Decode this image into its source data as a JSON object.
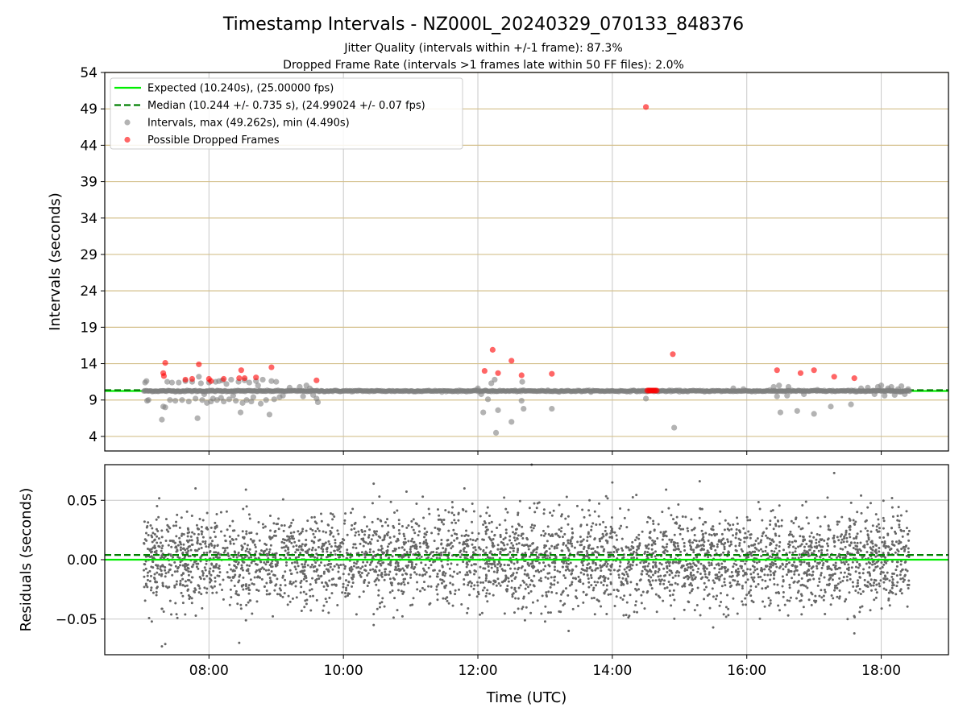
{
  "title": "Timestamp Intervals - NZ000L_20240329_070133_848376",
  "subtitle_1": "Jitter Quality (intervals within +/-1 frame): 87.3%",
  "subtitle_2": "Dropped Frame Rate (intervals >1 frames late within 50 FF files): 2.0%",
  "colors": {
    "expected": "#00ee00",
    "median": "#008000",
    "intervals": "#808080",
    "dropped": "#ff0000",
    "hgrid_top": "#d4c08c",
    "grid": "#c8c8c8"
  },
  "chart_data": [
    {
      "type": "scatter",
      "ylabel": "Intervals (seconds)",
      "xlabel": "",
      "x_unit": "hours UTC",
      "xlim": [
        6.45,
        19.0
      ],
      "ylim": [
        2.0,
        54.0
      ],
      "yticks": [
        4,
        9,
        14,
        19,
        24,
        29,
        34,
        39,
        44,
        49,
        54
      ],
      "xticks": [
        8,
        10,
        12,
        14,
        16,
        18
      ],
      "grid": true,
      "legend_position": "upper-left",
      "legend": [
        {
          "label": "Expected (10.240s), (25.00000 fps)",
          "style": "solid-line",
          "color": "#00ee00"
        },
        {
          "label": "Median (10.244 +/- 0.735 s), (24.99024 +/- 0.07 fps)",
          "style": "dashed-line",
          "color": "#008000"
        },
        {
          "label": "Intervals, max (49.262s), min (4.490s)",
          "style": "dot",
          "color": "#808080"
        },
        {
          "label": "Possible Dropped Frames",
          "style": "dot",
          "color": "#ff0000"
        }
      ],
      "expected_y": 10.24,
      "median_y": 10.244,
      "baseline_x_range": [
        7.03,
        18.42
      ],
      "interval_points": [
        [
          7.05,
          11.4
        ],
        [
          7.07,
          11.6
        ],
        [
          7.08,
          8.9
        ],
        [
          7.1,
          9.0
        ],
        [
          7.3,
          6.3
        ],
        [
          7.32,
          8.1
        ],
        [
          7.35,
          8.0
        ],
        [
          7.38,
          11.5
        ],
        [
          7.42,
          9.0
        ],
        [
          7.45,
          11.4
        ],
        [
          7.5,
          8.9
        ],
        [
          7.55,
          11.4
        ],
        [
          7.6,
          9.0
        ],
        [
          7.65,
          11.6
        ],
        [
          7.7,
          8.8
        ],
        [
          7.75,
          11.5
        ],
        [
          7.8,
          9.2
        ],
        [
          7.83,
          6.5
        ],
        [
          7.85,
          12.2
        ],
        [
          7.88,
          11.3
        ],
        [
          7.9,
          9.0
        ],
        [
          7.93,
          9.8
        ],
        [
          7.97,
          8.6
        ],
        [
          8.0,
          11.4
        ],
        [
          8.03,
          8.8
        ],
        [
          8.06,
          9.2
        ],
        [
          8.1,
          11.5
        ],
        [
          8.12,
          9.0
        ],
        [
          8.15,
          11.6
        ],
        [
          8.18,
          9.3
        ],
        [
          8.2,
          11.7
        ],
        [
          8.22,
          8.8
        ],
        [
          8.26,
          11.2
        ],
        [
          8.3,
          9.1
        ],
        [
          8.33,
          11.8
        ],
        [
          8.36,
          9.6
        ],
        [
          8.4,
          8.9
        ],
        [
          8.44,
          11.5
        ],
        [
          8.47,
          7.3
        ],
        [
          8.5,
          8.6
        ],
        [
          8.53,
          11.7
        ],
        [
          8.56,
          9.0
        ],
        [
          8.6,
          11.4
        ],
        [
          8.63,
          8.8
        ],
        [
          8.66,
          9.4
        ],
        [
          8.7,
          11.6
        ],
        [
          8.73,
          11.0
        ],
        [
          8.77,
          8.5
        ],
        [
          8.8,
          11.8
        ],
        [
          8.85,
          9.0
        ],
        [
          8.9,
          7.0
        ],
        [
          8.93,
          11.6
        ],
        [
          8.97,
          9.1
        ],
        [
          9.0,
          11.5
        ],
        [
          9.05,
          9.4
        ],
        [
          9.1,
          9.6
        ],
        [
          9.2,
          10.7
        ],
        [
          9.35,
          10.8
        ],
        [
          9.4,
          9.5
        ],
        [
          9.45,
          11.0
        ],
        [
          9.5,
          10.6
        ],
        [
          9.55,
          9.7
        ],
        [
          9.6,
          9.2
        ],
        [
          9.62,
          8.7
        ],
        [
          12.0,
          10.6
        ],
        [
          12.05,
          9.8
        ],
        [
          12.08,
          7.3
        ],
        [
          12.15,
          9.1
        ],
        [
          12.2,
          11.3
        ],
        [
          12.25,
          11.8
        ],
        [
          12.27,
          4.5
        ],
        [
          12.3,
          7.6
        ],
        [
          12.5,
          6.0
        ],
        [
          12.65,
          8.9
        ],
        [
          12.68,
          7.8
        ],
        [
          12.66,
          11.5
        ],
        [
          13.1,
          7.8
        ],
        [
          14.5,
          9.2
        ],
        [
          14.92,
          5.2
        ],
        [
          15.8,
          10.6
        ],
        [
          15.95,
          10.5
        ],
        [
          16.4,
          10.8
        ],
        [
          16.45,
          9.5
        ],
        [
          16.48,
          11.0
        ],
        [
          16.5,
          7.3
        ],
        [
          16.6,
          9.6
        ],
        [
          16.62,
          10.8
        ],
        [
          16.75,
          7.5
        ],
        [
          16.85,
          9.8
        ],
        [
          17.0,
          7.1
        ],
        [
          17.05,
          10.4
        ],
        [
          17.25,
          8.1
        ],
        [
          17.55,
          8.4
        ],
        [
          17.7,
          10.6
        ],
        [
          17.8,
          10.7
        ],
        [
          17.9,
          9.8
        ],
        [
          17.95,
          10.8
        ],
        [
          18.0,
          11.0
        ],
        [
          18.05,
          9.6
        ],
        [
          18.1,
          10.6
        ],
        [
          18.15,
          10.8
        ],
        [
          18.2,
          9.7
        ],
        [
          18.25,
          10.5
        ],
        [
          18.3,
          10.9
        ],
        [
          18.35,
          9.8
        ],
        [
          18.4,
          10.5
        ]
      ],
      "dropped_points": [
        [
          7.32,
          12.7
        ],
        [
          7.33,
          12.3
        ],
        [
          7.35,
          14.1
        ],
        [
          7.65,
          11.8
        ],
        [
          7.75,
          11.9
        ],
        [
          7.85,
          13.9
        ],
        [
          8.0,
          11.9
        ],
        [
          8.03,
          11.6
        ],
        [
          8.22,
          11.9
        ],
        [
          8.45,
          12.0
        ],
        [
          8.48,
          13.1
        ],
        [
          8.53,
          12.0
        ],
        [
          8.7,
          12.1
        ],
        [
          8.93,
          13.5
        ],
        [
          9.6,
          11.7
        ],
        [
          12.1,
          13.0
        ],
        [
          12.22,
          15.9
        ],
        [
          12.3,
          12.7
        ],
        [
          12.5,
          14.4
        ],
        [
          12.65,
          12.4
        ],
        [
          13.1,
          12.6
        ],
        [
          14.5,
          49.262
        ],
        [
          14.52,
          10.3
        ],
        [
          14.54,
          10.3
        ],
        [
          14.56,
          10.3
        ],
        [
          14.58,
          10.3
        ],
        [
          14.6,
          10.3
        ],
        [
          14.62,
          10.3
        ],
        [
          14.64,
          10.3
        ],
        [
          14.66,
          10.3
        ],
        [
          14.9,
          15.3
        ],
        [
          16.45,
          13.1
        ],
        [
          16.8,
          12.7
        ],
        [
          17.0,
          13.1
        ],
        [
          17.3,
          12.2
        ],
        [
          17.6,
          12.0
        ]
      ]
    },
    {
      "type": "scatter",
      "ylabel": "Residuals (seconds)",
      "xlabel": "Time (UTC)",
      "x_unit": "hours UTC",
      "xlim": [
        6.45,
        19.0
      ],
      "ylim": [
        -0.08,
        0.08
      ],
      "yticks": [
        0.05,
        0.0,
        -0.05
      ],
      "ytick_labels": [
        "0.05",
        "0.00",
        "−0.05"
      ],
      "xticks": [
        8,
        10,
        12,
        14,
        16,
        18
      ],
      "xtick_labels": [
        "08:00",
        "10:00",
        "12:00",
        "14:00",
        "16:00",
        "18:00"
      ],
      "grid": true,
      "expected_y": 0.0,
      "median_y": 0.004,
      "x_range": [
        7.03,
        18.42
      ],
      "point_count": 3900,
      "std": 0.019,
      "outliers": [
        [
          7.3,
          -0.073
        ],
        [
          7.35,
          -0.071
        ],
        [
          8.45,
          -0.07
        ],
        [
          7.15,
          -0.052
        ],
        [
          8.55,
          -0.051
        ],
        [
          10.45,
          -0.055
        ],
        [
          12.7,
          -0.051
        ],
        [
          13.0,
          -0.052
        ],
        [
          13.35,
          -0.06
        ],
        [
          15.5,
          -0.057
        ],
        [
          17.6,
          -0.062
        ],
        [
          17.5,
          -0.05
        ],
        [
          7.8,
          0.06
        ],
        [
          8.55,
          0.059
        ],
        [
          10.45,
          0.064
        ],
        [
          11.8,
          0.06
        ],
        [
          12.8,
          0.08
        ],
        [
          14.0,
          0.065
        ],
        [
          14.8,
          0.059
        ],
        [
          15.3,
          0.066
        ],
        [
          17.3,
          0.073
        ],
        [
          17.7,
          0.054
        ]
      ]
    }
  ]
}
